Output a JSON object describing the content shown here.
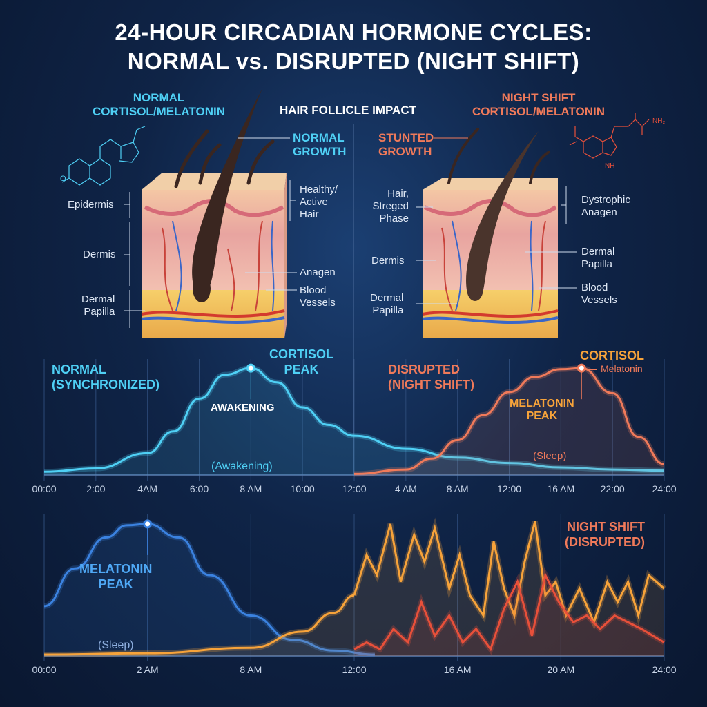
{
  "title": {
    "line1": "24-HOUR CIRCADIAN HORMONE CYCLES:",
    "line2": "NORMAL vs. DISRUPTED (NIGHT SHIFT)"
  },
  "left_panel": {
    "heading1": "NORMAL",
    "heading2": "CORTISOL/MELATONIN",
    "molecule": "cortisol",
    "growth1": "NORMAL",
    "growth2": "GROWTH",
    "labels": {
      "epidermis": "Epidermis",
      "dermis": "Dermis",
      "papilla1": "Dermal",
      "papilla2": "Papilla",
      "healthy1": "Healthy/",
      "healthy2": "Active",
      "healthy3": "Hair",
      "anagen": "Anagen",
      "blood1": "Blood",
      "blood2": "Vessels"
    }
  },
  "center_heading": "HAIR FOLLICLE IMPACT",
  "right_panel": {
    "heading1": "NIGHT SHIFT",
    "heading2": "CORTISOL/MELATONIN",
    "molecule": "melatonin",
    "growth1": "STUNTED",
    "growth2": "GROWTH",
    "labels": {
      "hair1": "Hair,",
      "hair2": "Streged",
      "hair3": "Phase",
      "dermis": "Dermis",
      "papilla1": "Dermal",
      "papilla2": "Papilla",
      "dystrophic1": "Dystrophic",
      "dystrophic2": "Anagen",
      "dpapilla1": "Dermal",
      "dpapilla2": "Papilla",
      "blood1": "Blood",
      "blood2": "Vessels"
    }
  },
  "colors": {
    "blue": "#4fd0f5",
    "orange": "#f07a5a",
    "amber": "#f7a33a",
    "red": "#e8503a",
    "melBlue": "#3b82e0"
  },
  "chart_data": [
    {
      "type": "line",
      "title": "Cortisol",
      "xticks": [
        "00:00",
        "2:00",
        "4AM",
        "6:00",
        "8 AM",
        "10:00",
        "12:00",
        "4 AM",
        "8 AM",
        "12:00",
        "16 AM",
        "22:00",
        "24:00"
      ],
      "annotations": {
        "normal1": "NORMAL",
        "normal2": "(SYNCHRONIZED)",
        "peak1": "CORTISOL",
        "peak2": "PEAK",
        "awakening": "AWAKENING",
        "awakening_paren": "(Awakening)",
        "disrupted1": "DISRUPTED",
        "disrupted2": "(NIGHT SHIFT)",
        "legend_cortisol": "CORTISOL",
        "legend_melatonin": "Melatonin",
        "mpeak1": "MELATONIN",
        "mpeak2": "PEAK",
        "sleep": "(Sleep)"
      },
      "series": [
        {
          "name": "Normal cortisol",
          "color": "#4fd0f5",
          "x": [
            0,
            1,
            2,
            2.5,
            3,
            3.5,
            4,
            4.5,
            5,
            5.5,
            6,
            7,
            8,
            9,
            10,
            11,
            12
          ],
          "y": [
            0.03,
            0.06,
            0.2,
            0.4,
            0.7,
            0.92,
            0.98,
            0.85,
            0.62,
            0.46,
            0.36,
            0.24,
            0.16,
            0.11,
            0.07,
            0.05,
            0.04
          ]
        },
        {
          "name": "Night shift cortisol",
          "color": "#f07a5a",
          "x": [
            6,
            7,
            7.5,
            8,
            8.5,
            9,
            9.5,
            10,
            10.4,
            11,
            11.5,
            12
          ],
          "y": [
            0.01,
            0.05,
            0.15,
            0.32,
            0.55,
            0.76,
            0.9,
            0.97,
            0.98,
            0.75,
            0.35,
            0.1
          ]
        }
      ]
    },
    {
      "type": "line",
      "title": "Melatonin",
      "xticks": [
        "00:00",
        "2 AM",
        "8 AM",
        "12:00",
        "16 AM",
        "20 AM",
        "24:00"
      ],
      "annotations": {
        "peak1": "MELATONIN",
        "peak2": "PEAK",
        "sleep": "(Sleep)",
        "night1": "NIGHT SHIFT",
        "night2": "(DISRUPTED)"
      },
      "series": [
        {
          "name": "Normal melatonin",
          "color": "#3b82e0",
          "x": [
            0,
            0.3,
            0.6,
            0.8,
            1,
            1.3,
            1.6,
            2,
            2.4,
            2.8,
            3.2
          ],
          "y": [
            0.37,
            0.65,
            0.88,
            0.97,
            0.98,
            0.88,
            0.6,
            0.3,
            0.12,
            0.04,
            0.01
          ]
        },
        {
          "name": "Rising melatonin (shift)",
          "color": "#f7a33a",
          "x": [
            0,
            1,
            2,
            2.5,
            2.8,
            3
          ],
          "y": [
            0.01,
            0.02,
            0.06,
            0.18,
            0.32,
            0.45
          ]
        },
        {
          "name": "Night shift cortisol jagged",
          "color": "#f7a33a",
          "x": [
            3,
            3.12,
            3.22,
            3.35,
            3.45,
            3.58,
            3.68,
            3.78,
            3.92,
            4.02,
            4.12,
            4.25,
            4.35,
            4.45,
            4.55,
            4.65,
            4.75,
            4.85,
            4.95,
            5.05,
            5.18,
            5.32,
            5.45,
            5.55,
            5.65,
            5.75,
            5.85,
            6
          ],
          "y": [
            0.45,
            0.75,
            0.6,
            0.98,
            0.55,
            0.9,
            0.7,
            0.95,
            0.5,
            0.75,
            0.45,
            0.3,
            0.85,
            0.5,
            0.3,
            0.7,
            1.0,
            0.45,
            0.55,
            0.3,
            0.5,
            0.25,
            0.55,
            0.4,
            0.55,
            0.3,
            0.6,
            0.5
          ]
        },
        {
          "name": "Night shift melatonin jagged",
          "color": "#e8503a",
          "x": [
            3,
            3.12,
            3.25,
            3.38,
            3.52,
            3.65,
            3.78,
            3.92,
            4.05,
            4.18,
            4.32,
            4.45,
            4.58,
            4.72,
            4.85,
            4.98,
            5.12,
            5.25,
            5.38,
            5.52,
            5.65,
            5.78,
            6
          ],
          "y": [
            0.05,
            0.1,
            0.05,
            0.2,
            0.1,
            0.4,
            0.15,
            0.3,
            0.1,
            0.2,
            0.05,
            0.35,
            0.55,
            0.15,
            0.6,
            0.4,
            0.25,
            0.3,
            0.2,
            0.3,
            0.25,
            0.2,
            0.1
          ]
        }
      ]
    }
  ]
}
